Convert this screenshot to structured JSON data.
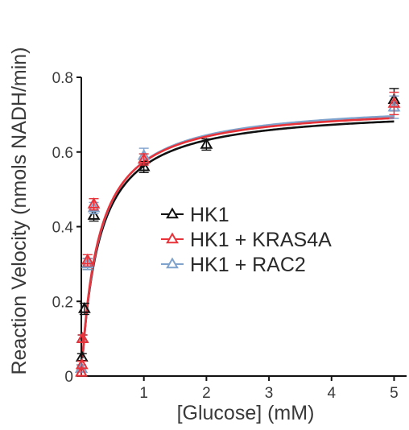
{
  "chart_data": {
    "type": "scatter",
    "xlabel": "[Glucose]  (mM)",
    "ylabel": "Reaction Velocity (nmols NADH/min)",
    "xlim": [
      0,
      5.2
    ],
    "ylim": [
      0,
      0.8
    ],
    "xticks": [
      1,
      2,
      3,
      4,
      5
    ],
    "yticks": [
      0,
      0.2,
      0.4,
      0.6,
      0.8
    ],
    "x_tick_labels": [
      "1",
      "2",
      "3",
      "4",
      "5"
    ],
    "y_tick_labels": [
      "0",
      "0.2",
      "0.4",
      "0.6",
      "0.8"
    ],
    "grid": false,
    "legend_position": "center-right",
    "fit": "Michaelis-Menten curve per series",
    "series": [
      {
        "name": "HK1",
        "color": "#111111",
        "fit": {
          "vmax": 0.72,
          "km": 0.28
        },
        "points": [
          {
            "x": 0,
            "y": 0.02,
            "err": 0.01
          },
          {
            "x": 0.01,
            "y": 0.05,
            "err": 0.01
          },
          {
            "x": 0.02,
            "y": 0.1,
            "err": 0.01
          },
          {
            "x": 0.05,
            "y": 0.18,
            "err": 0.015
          },
          {
            "x": 0.1,
            "y": 0.3,
            "err": 0.015
          },
          {
            "x": 0.2,
            "y": 0.43,
            "err": 0.015
          },
          {
            "x": 1,
            "y": 0.56,
            "err": 0.015
          },
          {
            "x": 2,
            "y": 0.62,
            "err": 0.015
          },
          {
            "x": 5,
            "y": 0.74,
            "err": 0.03
          }
        ]
      },
      {
        "name": "HK1 + KRAS4A",
        "color": "#e8333a",
        "fit": {
          "vmax": 0.728,
          "km": 0.27
        },
        "points": [
          {
            "x": 0,
            "y": 0.01,
            "err": 0.01
          },
          {
            "x": 0.01,
            "y": 0.03,
            "err": 0.01
          },
          {
            "x": 0.02,
            "y": 0.1,
            "err": 0.01
          },
          {
            "x": 0.1,
            "y": 0.31,
            "err": 0.015
          },
          {
            "x": 0.2,
            "y": 0.46,
            "err": 0.015
          },
          {
            "x": 1,
            "y": 0.58,
            "err": 0.015
          },
          {
            "x": 5,
            "y": 0.73,
            "err": 0.03
          }
        ]
      },
      {
        "name": "HK1 + RAC2",
        "color": "#7fa3cc",
        "fit": {
          "vmax": 0.735,
          "km": 0.28
        },
        "points": [
          {
            "x": 0,
            "y": 0.02,
            "err": 0.01
          },
          {
            "x": 0.02,
            "y": 0.1,
            "err": 0.01
          },
          {
            "x": 0.1,
            "y": 0.3,
            "err": 0.015
          },
          {
            "x": 0.2,
            "y": 0.45,
            "err": 0.015
          },
          {
            "x": 1,
            "y": 0.59,
            "err": 0.02
          },
          {
            "x": 5,
            "y": 0.72,
            "err": 0.03
          }
        ]
      }
    ]
  }
}
